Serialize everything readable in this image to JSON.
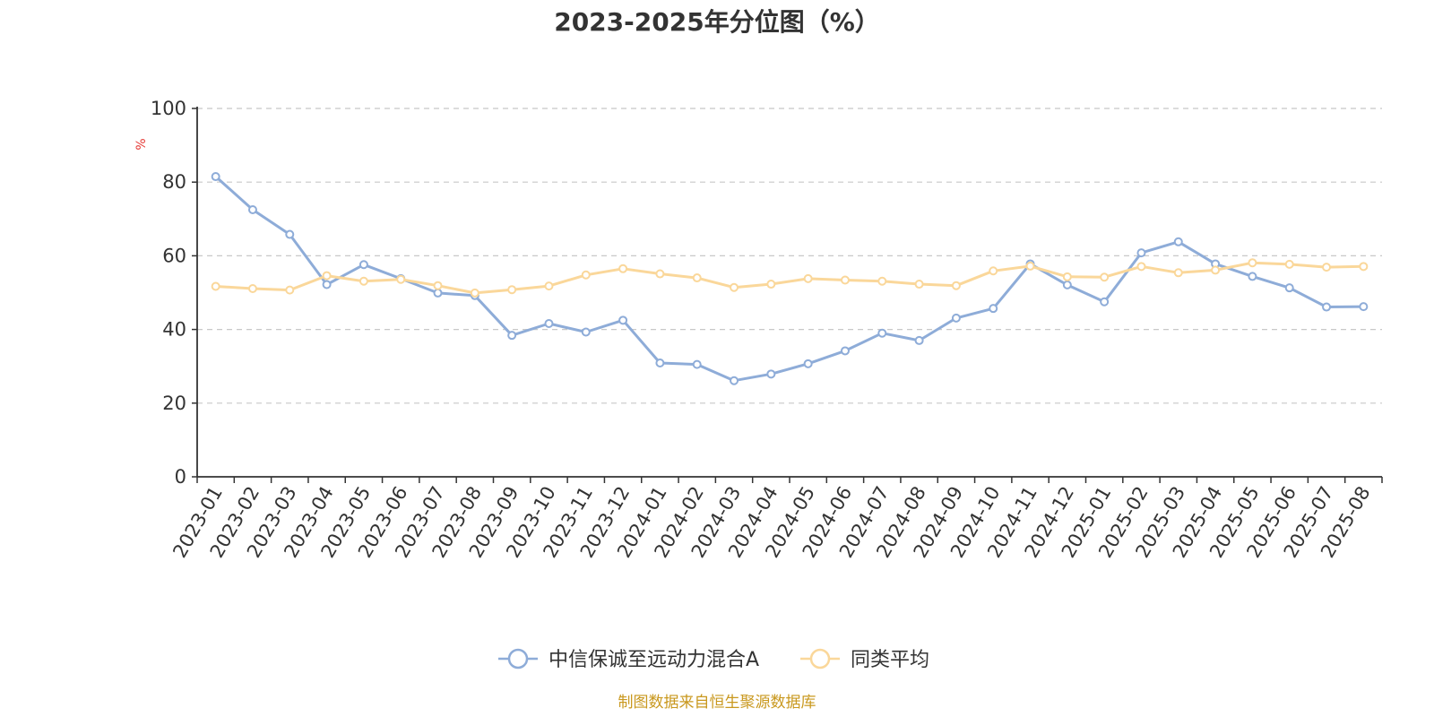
{
  "chart_data": {
    "type": "line",
    "title": "2023-2025年分位图（%）",
    "ylabel": "%",
    "ylim": [
      0,
      100
    ],
    "yticks": [
      0,
      20,
      40,
      60,
      80,
      100
    ],
    "grid": true,
    "legend_position": "bottom",
    "categories": [
      "2023-01",
      "2023-02",
      "2023-03",
      "2023-04",
      "2023-05",
      "2023-06",
      "2023-07",
      "2023-08",
      "2023-09",
      "2023-10",
      "2023-11",
      "2023-12",
      "2024-01",
      "2024-02",
      "2024-03",
      "2024-04",
      "2024-05",
      "2024-06",
      "2024-07",
      "2024-08",
      "2024-09",
      "2024-10",
      "2024-11",
      "2024-12",
      "2025-01",
      "2025-02",
      "2025-03",
      "2025-04",
      "2025-05",
      "2025-06",
      "2025-07",
      "2025-08"
    ],
    "series": [
      {
        "name": "中信保诚至远动力混合A",
        "color": "#8eacd8",
        "values": [
          81.5,
          72.5,
          65.8,
          52.2,
          57.6,
          53.8,
          49.9,
          49.2,
          38.4,
          41.6,
          39.3,
          42.5,
          30.9,
          30.5,
          26.1,
          27.9,
          30.7,
          34.2,
          39.0,
          37.0,
          43.1,
          45.7,
          57.8,
          52.1,
          47.5,
          60.8,
          63.8,
          57.8,
          54.4,
          51.3,
          46.1,
          46.2
        ]
      },
      {
        "name": "同类平均",
        "color": "#fad79a",
        "values": [
          51.7,
          51.1,
          50.7,
          54.6,
          53.1,
          53.6,
          51.9,
          49.9,
          50.8,
          51.8,
          54.8,
          56.5,
          55.1,
          54.0,
          51.4,
          52.3,
          53.8,
          53.4,
          53.1,
          52.3,
          51.9,
          55.9,
          57.2,
          54.3,
          54.2,
          57.1,
          55.4,
          56.1,
          58.1,
          57.7,
          56.9,
          57.1
        ]
      }
    ]
  },
  "source_text": "制图数据来自恒生聚源数据库"
}
